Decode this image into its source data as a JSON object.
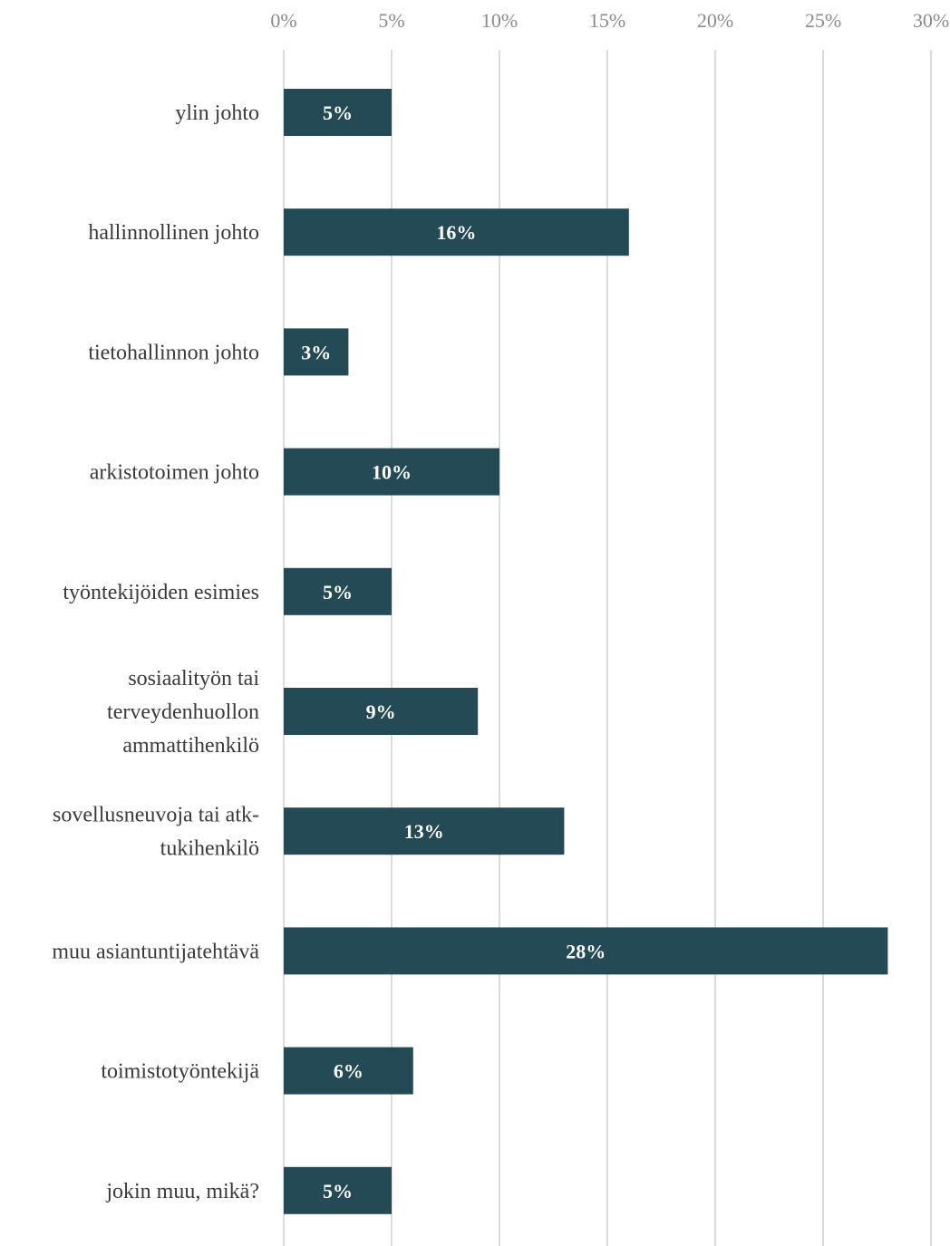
{
  "chart_data": {
    "type": "bar",
    "orientation": "horizontal",
    "categories": [
      "ylin johto",
      "hallinnollinen johto",
      "tietohallinnon johto",
      "arkistotoimen johto",
      "työntekijöiden esimies",
      "sosiaalityön tai terveydenhuollon ammattihenkilö",
      "sovellusneuvoja tai atk-tukihenkilö",
      "muu asiantuntijatehtävä",
      "toimistotyöntekijä",
      "jokin muu, mikä?"
    ],
    "category_lines": [
      [
        "ylin johto"
      ],
      [
        "hallinnollinen johto"
      ],
      [
        "tietohallinnon johto"
      ],
      [
        "arkistotoimen johto"
      ],
      [
        "työntekijöiden esimies"
      ],
      [
        "sosiaalityön tai",
        "terveydenhuollon",
        "ammattihenkilö"
      ],
      [
        "sovellusneuvoja tai atk-",
        "tukihenkilö"
      ],
      [
        "muu asiantuntijatehtävä"
      ],
      [
        "toimistotyöntekijä"
      ],
      [
        "jokin muu, mikä?"
      ]
    ],
    "values": [
      5,
      16,
      3,
      10,
      5,
      9,
      13,
      28,
      6,
      5
    ],
    "data_labels": [
      "5%",
      "16%",
      "3%",
      "10%",
      "5%",
      "9%",
      "13%",
      "28%",
      "6%",
      "5%"
    ],
    "x_ticks": [
      0,
      5,
      10,
      15,
      20,
      25,
      30
    ],
    "x_tick_labels": [
      "0%",
      "5%",
      "10%",
      "15%",
      "20%",
      "25%",
      "30%"
    ],
    "xlim": [
      0,
      30
    ],
    "x_axis_position": "top",
    "grid": true,
    "title": "",
    "xlabel": "",
    "ylabel": "",
    "bar_color": "#234a55",
    "grid_color": "#cfcfcf"
  }
}
